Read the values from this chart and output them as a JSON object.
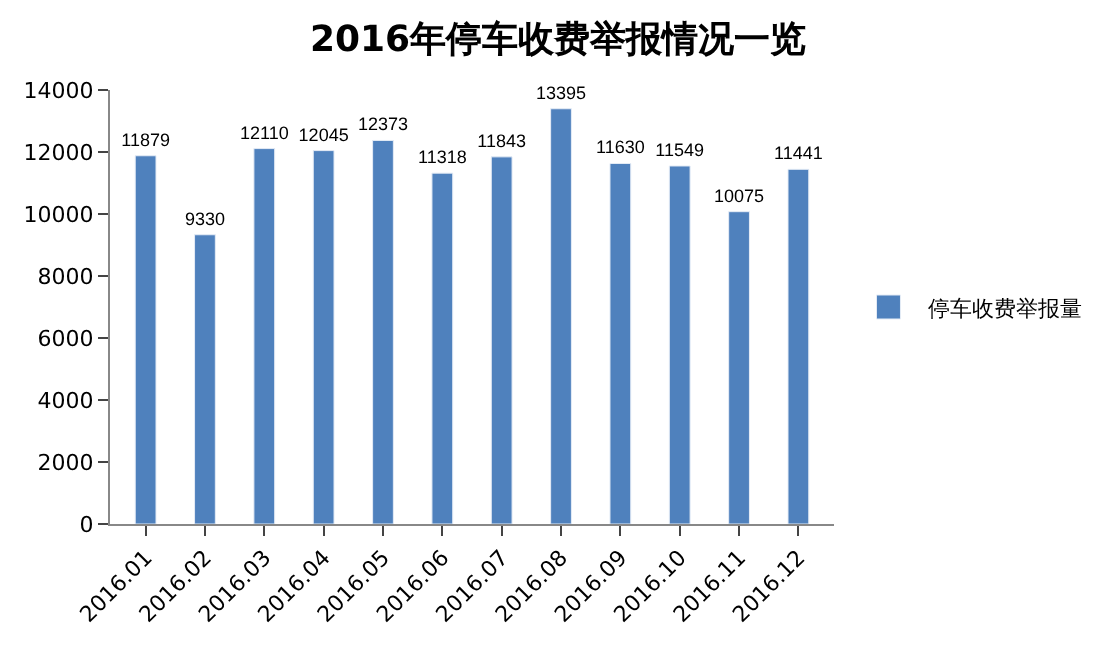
{
  "chart_data": {
    "type": "bar",
    "title": "2016年停车收费举报情况一览",
    "categories": [
      "2016.01",
      "2016.02",
      "2016.03",
      "2016.04",
      "2016.05",
      "2016.06",
      "2016.07",
      "2016.08",
      "2016.09",
      "2016.10",
      "2016.11",
      "2016.12"
    ],
    "series": [
      {
        "name": "停车收费举报量",
        "color": "#4f81bd",
        "values": [
          11879,
          9330,
          12110,
          12045,
          12373,
          11318,
          11843,
          13395,
          11630,
          11549,
          10075,
          11441
        ]
      }
    ],
    "ylim": [
      0,
      14000
    ],
    "yticks": [
      0,
      2000,
      4000,
      6000,
      8000,
      10000,
      12000,
      14000
    ],
    "data_labels": true,
    "legend": "right",
    "grid": false
  }
}
